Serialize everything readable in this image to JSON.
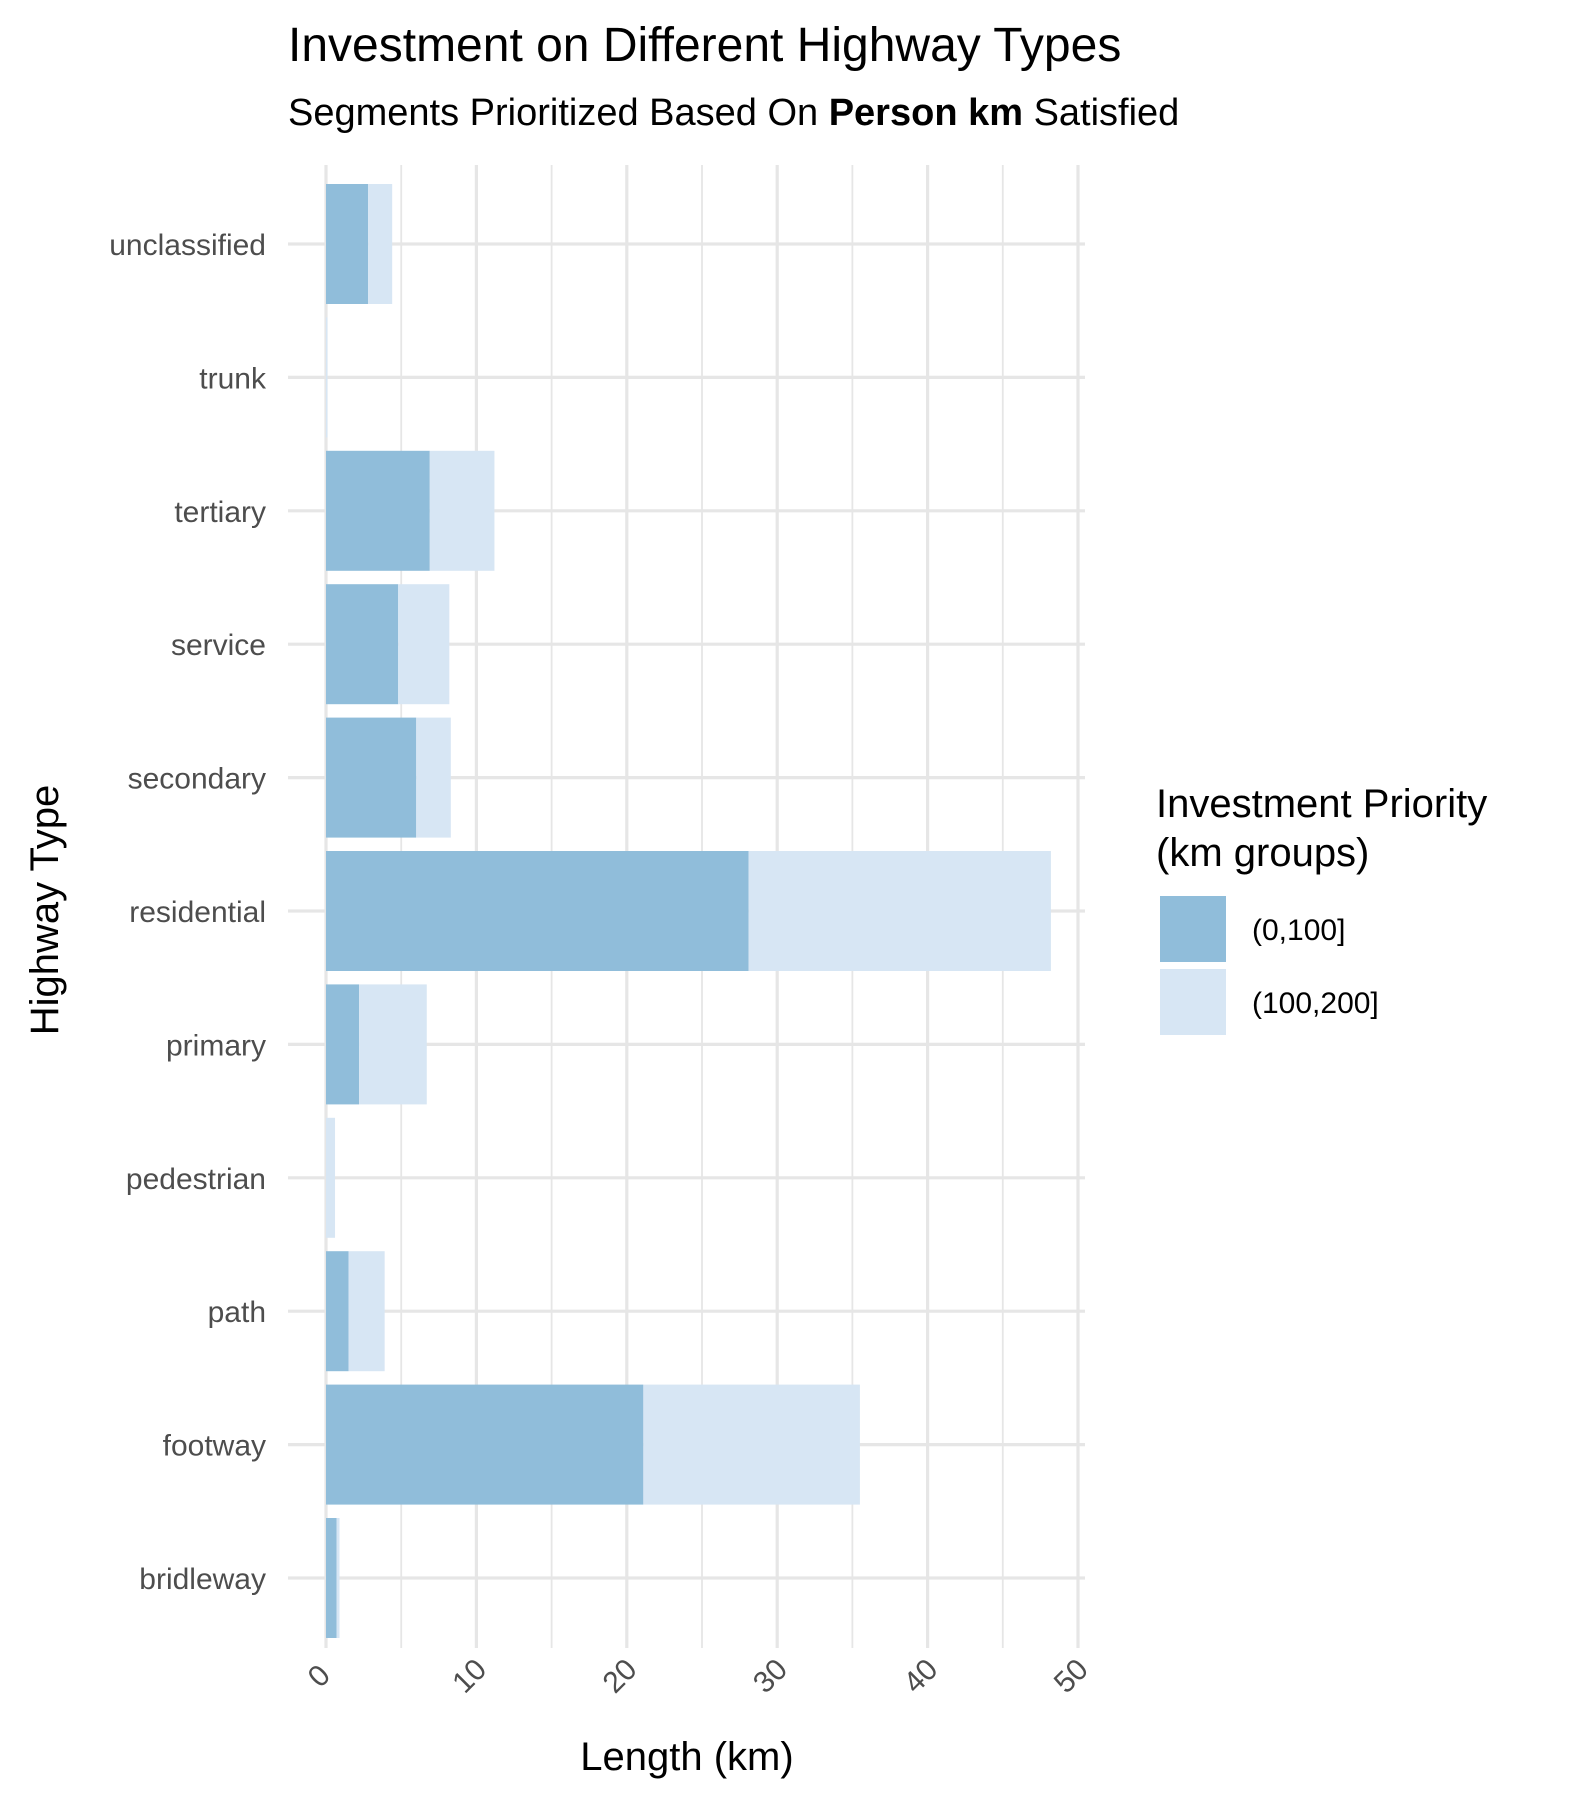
{
  "title": "Investment on Different Highway Types",
  "subtitle_parts": {
    "before": "Segments Prioritized Based On ",
    "bold": "Person km",
    "after": " Satisfied"
  },
  "colors": {
    "series_0_100": "#90bdda",
    "series_100_200": "#d7e6f4",
    "grid": "#e6e6e6"
  },
  "chart_data": {
    "type": "bar",
    "orientation": "horizontal",
    "stacked": true,
    "title": "Investment on Different Highway Types",
    "subtitle": "Segments Prioritized Based On Person km Satisfied",
    "xlabel": "Length (km)",
    "ylabel": "Highway Type",
    "xlim": [
      0,
      50
    ],
    "x_ticks": [
      0,
      10,
      20,
      30,
      40,
      50
    ],
    "grid": true,
    "legend_position": "right",
    "legend_title_lines": [
      "Investment Priority",
      "(km groups)"
    ],
    "categories": [
      "unclassified",
      "trunk",
      "tertiary",
      "service",
      "secondary",
      "residential",
      "primary",
      "pedestrian",
      "path",
      "footway",
      "bridleway"
    ],
    "series": [
      {
        "name": "(0,100]",
        "values": [
          2.8,
          0.0,
          6.9,
          4.8,
          6.0,
          28.1,
          2.2,
          0.0,
          1.5,
          21.1,
          0.7
        ]
      },
      {
        "name": "(100,200]",
        "values": [
          1.6,
          0.1,
          4.3,
          3.4,
          2.3,
          20.1,
          4.5,
          0.6,
          2.4,
          14.4,
          0.2
        ]
      }
    ]
  }
}
